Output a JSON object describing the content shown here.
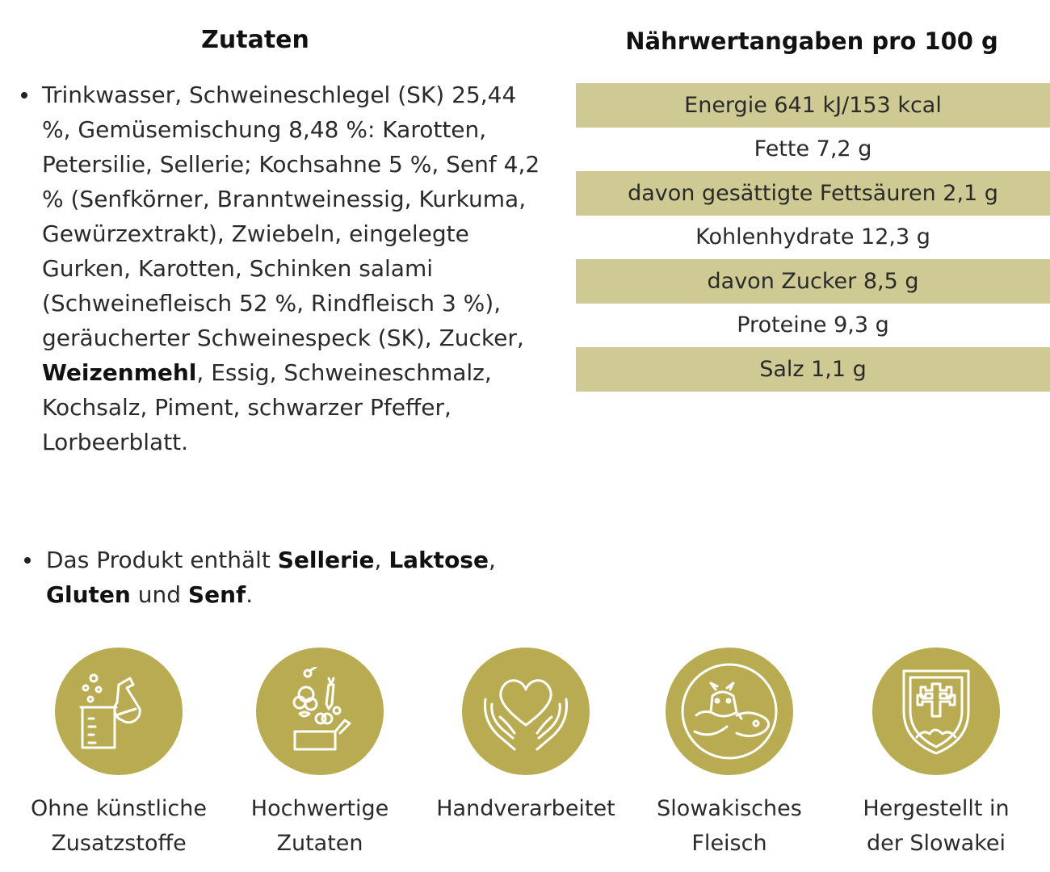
{
  "ingredients": {
    "title": "Zutaten",
    "text_before_bold": "Trinkwasser, Schweineschlegel (SK) 25,44 %, Gemüsemischung 8,48 %: Karotten, Petersilie, Sellerie; Kochsahne 5 %, Senf 4,2 % (Senfkörner, Branntweinessig, Kurkuma, Gewürzextrakt), Zwiebeln, eingelegte Gurken, Karotten, Schinken salami (Schweinefleisch 52 %, Rindfleisch 3 %), geräucherter Schweinespeck (SK), Zucker, ",
    "bold_word": "Weizenmehl",
    "text_after_bold": ", Essig, Schweineschmalz, Kochsalz, Piment, schwarzer Pfeffer, Lorbeerblatt."
  },
  "allergens": {
    "prefix": "Das Produkt enthält ",
    "item1": "Sellerie",
    "sep1": ", ",
    "item2": "Laktose",
    "sep2": ", ",
    "item3": "Gluten",
    "sep3": " und ",
    "item4": "Senf",
    "suffix": "."
  },
  "nutrition": {
    "title": "Nährwertangaben pro 100 g",
    "rows": [
      "Energie 641 kJ/153 kcal",
      "Fette 7,2 g",
      "davon gesättigte Fettsäuren 2,1 g",
      "Kohlenhydrate 12,3 g",
      "davon Zucker 8,5 g",
      "Proteine 9,3 g",
      "Salz 1,1 g"
    ],
    "row_shade_color": "#cfca93"
  },
  "badges": [
    {
      "icon": "lab-flask-beaker-icon",
      "line1": "Ohne künstliche",
      "line2": "Zusatzstoffe"
    },
    {
      "icon": "vegetables-box-icon",
      "line1": "Hochwertige",
      "line2": "Zutaten"
    },
    {
      "icon": "heart-hands-icon",
      "line1": "Handverarbeitet",
      "line2": ""
    },
    {
      "icon": "cow-pig-icon",
      "line1": "Slowakisches",
      "line2": "Fleisch"
    },
    {
      "icon": "slovak-coat-of-arms-icon",
      "line1": "Hergestellt in",
      "line2": "der Slowakei"
    }
  ],
  "colors": {
    "badge_circle": "#b9ab52",
    "icon_stroke": "#ffffff",
    "text": "#2a2a2a"
  }
}
